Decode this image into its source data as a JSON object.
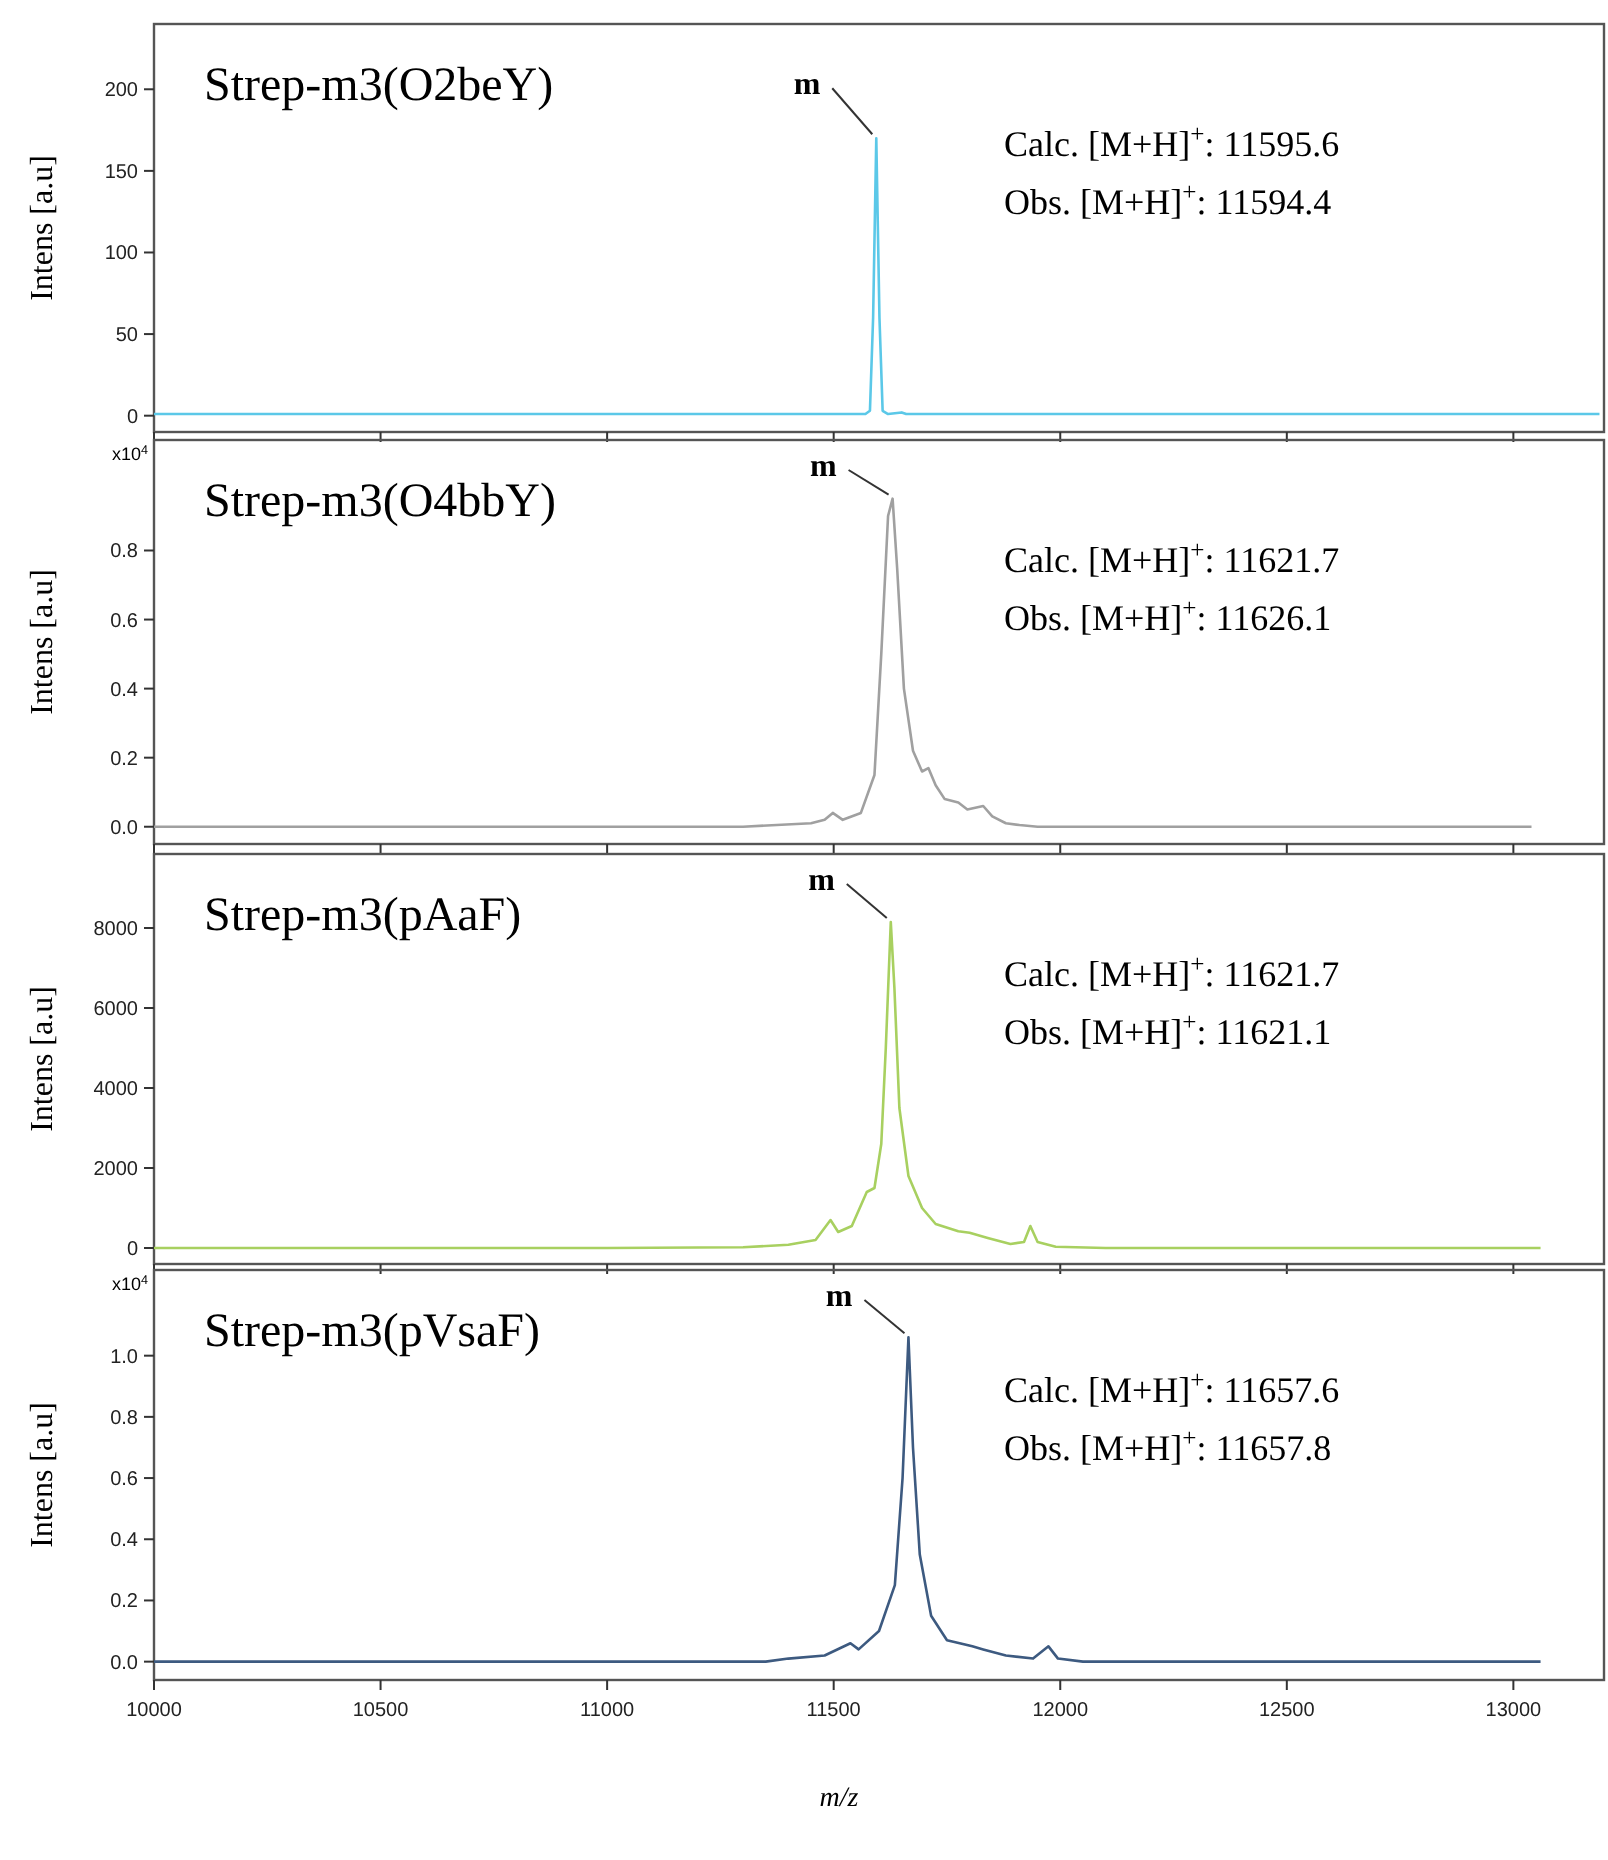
{
  "chart_data": [
    {
      "type": "line",
      "title": "Strep-m3(O2beY)",
      "ylabel": "Intens [a.u]",
      "xlim": [
        10000,
        13200
      ],
      "xticks": [
        10000,
        10500,
        11000,
        11500,
        12000,
        12500,
        13000
      ],
      "ylim": [
        -10,
        240
      ],
      "yticks": [
        0,
        50,
        100,
        150,
        200
      ],
      "tick_labels": "y",
      "marker": "none",
      "line_style": "solid",
      "series": [
        {
          "color": "#5bc8e8",
          "x": [
            10000,
            11500,
            11570,
            11580,
            11587,
            11594,
            11601,
            11608,
            11620,
            11650,
            11660,
            13190
          ],
          "values": [
            1,
            1,
            1,
            3,
            60,
            170,
            60,
            3,
            1,
            2,
            1,
            1
          ]
        }
      ],
      "annotations": [
        {
          "text": "m",
          "x": 11594,
          "y": 170
        },
        "Calc. [M+H]$^{+}$: 11595.6",
        "Obs. [M+H]$^{+}$: 11594.4"
      ]
    },
    {
      "type": "line",
      "title": "Strep-m3(O4bbY)",
      "ylabel": "Intens [a.u]",
      "xlim": [
        10000,
        13200
      ],
      "xticks": [
        10000,
        10500,
        11000,
        11500,
        12000,
        12500,
        13000
      ],
      "ylim": [
        -0.05,
        1.12
      ],
      "yticks": [
        {
          "value": 0,
          "label": "0.0"
        },
        {
          "value": 0.2,
          "label": "0.2"
        },
        {
          "value": 0.4,
          "label": "0.4"
        },
        {
          "value": 0.6,
          "label": "0.6"
        },
        {
          "value": 0.8,
          "label": "0.8"
        }
      ],
      "tick_labels": "y",
      "marker": "none",
      "line_style": "solid",
      "series": [
        {
          "color": "#a0a0a0",
          "x": [
            10000,
            11300,
            11450,
            11480,
            11498,
            11520,
            11560,
            11590,
            11605,
            11620,
            11630,
            11640,
            11655,
            11675,
            11695,
            11709,
            11725,
            11745,
            11775,
            11795,
            11830,
            11850,
            11880,
            11910,
            11950,
            13040
          ],
          "values": [
            0,
            0,
            0.01,
            0.02,
            0.04,
            0.02,
            0.04,
            0.15,
            0.5,
            0.9,
            0.95,
            0.75,
            0.4,
            0.22,
            0.16,
            0.17,
            0.12,
            0.08,
            0.07,
            0.05,
            0.06,
            0.03,
            0.01,
            0.005,
            0,
            0
          ]
        }
      ],
      "annotations": [
        {
          "text": "m",
          "x": 11630,
          "y": 0.95
        },
        "Calc. [M+H]$^{+}$: 11621.7",
        "Obs. [M+H]$^{+}$: 11626.1",
        "x10$^{4}$"
      ]
    },
    {
      "type": "line",
      "title": "Strep-m3(pAaF)",
      "ylabel": "Intens [a.u]",
      "xlim": [
        10000,
        13200
      ],
      "xticks": [
        10000,
        10500,
        11000,
        11500,
        12000,
        12500,
        13000
      ],
      "ylim": [
        -400,
        9850
      ],
      "yticks": [
        0,
        2000,
        4000,
        6000,
        8000
      ],
      "tick_labels": "y",
      "marker": "none",
      "line_style": "solid",
      "series": [
        {
          "color": "#a8d060",
          "x": [
            10000,
            11000,
            11300,
            11400,
            11460,
            11493,
            11510,
            11540,
            11573,
            11590,
            11605,
            11615,
            11626,
            11634,
            11645,
            11665,
            11695,
            11725,
            11775,
            11800,
            11840,
            11890,
            11920,
            11934,
            11950,
            11990,
            12100,
            13060
          ],
          "values": [
            0,
            0,
            20,
            80,
            200,
            700,
            400,
            550,
            1400,
            1500,
            2600,
            5000,
            8150,
            6500,
            3500,
            1800,
            1000,
            600,
            420,
            380,
            250,
            100,
            150,
            550,
            150,
            30,
            0,
            0
          ]
        }
      ],
      "annotations": [
        {
          "text": "m",
          "x": 11626,
          "y": 8150
        },
        "Calc. [M+H]$^{+}$: 11621.7",
        "Obs. [M+H]$^{+}$: 11621.1"
      ]
    },
    {
      "type": "line",
      "title": "Strep-m3(pVsaF)",
      "ylabel": "Intens [a.u]",
      "xlabel": "m/z",
      "xlim": [
        10000,
        13200
      ],
      "xticks": [
        10000,
        10500,
        11000,
        11500,
        12000,
        12500,
        13000
      ],
      "ylim": [
        -0.06,
        1.28
      ],
      "yticks": [
        {
          "value": 0,
          "label": "0.0"
        },
        {
          "value": 0.2,
          "label": "0.2"
        },
        {
          "value": 0.4,
          "label": "0.4"
        },
        {
          "value": 0.6,
          "label": "0.6"
        },
        {
          "value": 0.8,
          "label": "0.8"
        },
        {
          "value": 1,
          "label": "1.0"
        }
      ],
      "marker": "none",
      "line_style": "solid",
      "series": [
        {
          "color": "#3d5a80",
          "x": [
            10000,
            11350,
            11400,
            11480,
            11537,
            11555,
            11600,
            11635,
            11652,
            11665,
            11675,
            11690,
            11715,
            11750,
            11806,
            11830,
            11880,
            11940,
            11974,
            11995,
            12050,
            13060
          ],
          "values": [
            0,
            0,
            0.01,
            0.02,
            0.06,
            0.04,
            0.1,
            0.25,
            0.6,
            1.06,
            0.7,
            0.35,
            0.15,
            0.07,
            0.05,
            0.04,
            0.02,
            0.01,
            0.05,
            0.01,
            0,
            0
          ]
        }
      ],
      "annotations": [
        {
          "text": "m",
          "x": 11665,
          "y": 1.06
        },
        "Calc. [M+H]$^{+}$: 11657.6",
        "Obs. [M+H]$^{+}$: 11657.8",
        "x10$^{4}$"
      ]
    }
  ]
}
